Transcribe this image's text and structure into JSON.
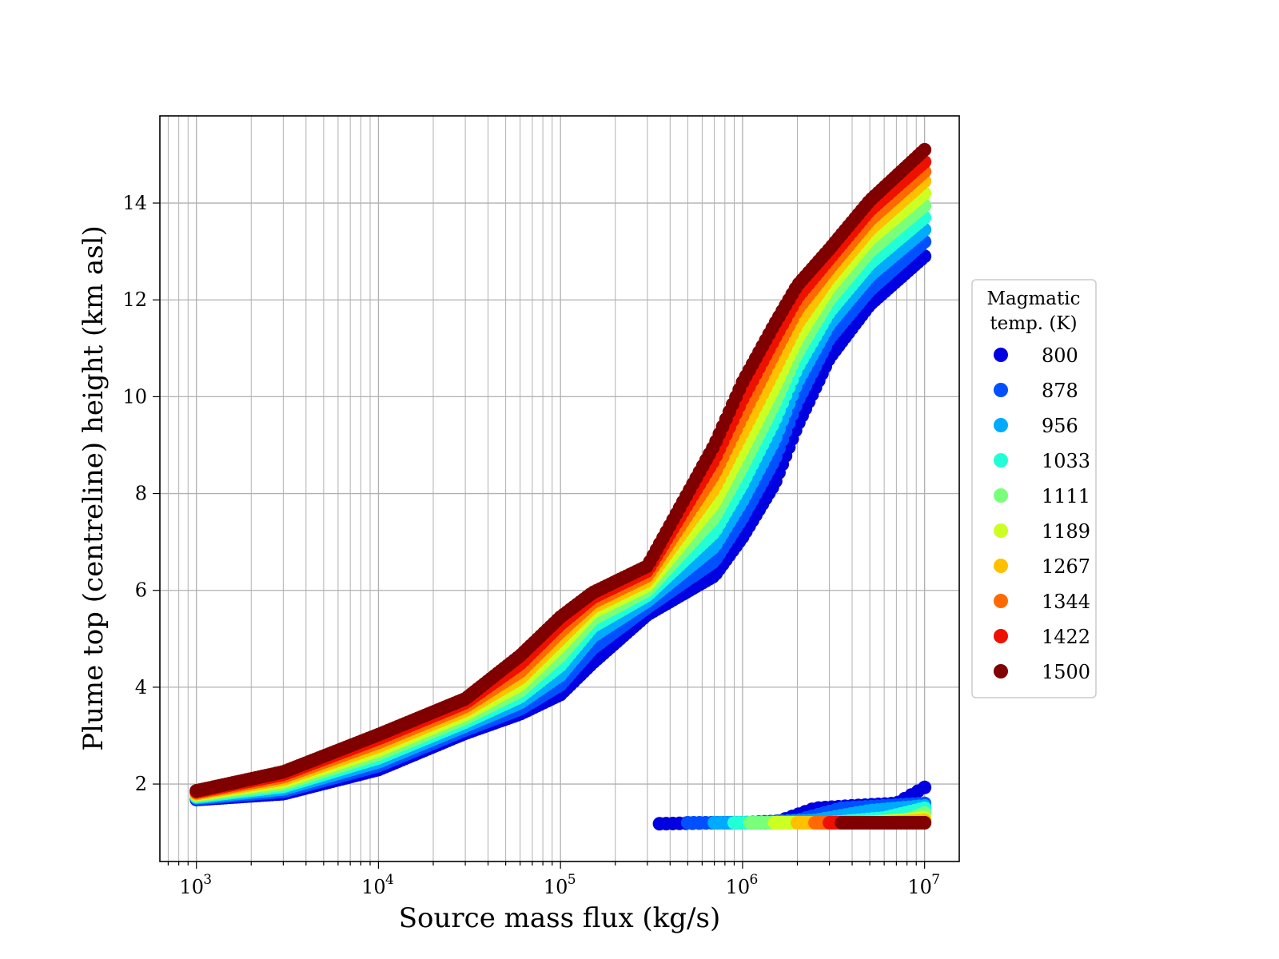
{
  "chart_data": {
    "type": "scatter",
    "xlabel": "Source mass flux (kg/s)",
    "ylabel": "Plume top (centreline) height (km asl)",
    "xscale": "log",
    "xlim": [
      630,
      15500000
    ],
    "ylim": [
      0.4,
      15.8
    ],
    "xticks": [
      1000,
      10000,
      100000,
      1000000,
      10000000
    ],
    "xtick_labels": [
      {
        "base": "10",
        "exp": "3"
      },
      {
        "base": "10",
        "exp": "4"
      },
      {
        "base": "10",
        "exp": "5"
      },
      {
        "base": "10",
        "exp": "6"
      },
      {
        "base": "10",
        "exp": "7"
      }
    ],
    "yticks": [
      2,
      4,
      6,
      8,
      10,
      12,
      14
    ],
    "ytick_labels": [
      "2",
      "4",
      "6",
      "8",
      "10",
      "12",
      "14"
    ],
    "grid": true,
    "legend": {
      "title_lines": [
        "Magmatic",
        "temp. (K)"
      ],
      "placement": "outside-right"
    },
    "series": [
      {
        "name": "800",
        "color": "#0000e0",
        "x": [
          1000,
          3000,
          10000,
          30000,
          60000,
          100000,
          150000,
          300000,
          700000,
          1000000,
          1500000,
          2000000,
          3000000,
          5000000,
          10000000
        ],
        "y": [
          1.68,
          1.8,
          2.3,
          3.05,
          3.45,
          3.85,
          4.5,
          5.5,
          6.3,
          7.1,
          8.2,
          9.4,
          10.8,
          11.9,
          12.9
        ],
        "low_x": [
          350000,
          700000,
          1500000,
          2500000,
          4000000,
          7000000,
          10000000
        ],
        "low_y": [
          1.18,
          1.2,
          1.2,
          1.5,
          1.55,
          1.6,
          1.93
        ]
      },
      {
        "name": "878",
        "color": "#0050ff",
        "x": [
          1000,
          3000,
          10000,
          30000,
          60000,
          100000,
          150000,
          300000,
          700000,
          1000000,
          1500000,
          2000000,
          3000000,
          5000000,
          10000000
        ],
        "y": [
          1.7,
          1.85,
          2.38,
          3.12,
          3.55,
          4.05,
          4.8,
          5.65,
          6.6,
          7.5,
          8.7,
          9.9,
          11.2,
          12.2,
          13.2
        ],
        "low_x": [
          500000,
          1000000,
          2000000,
          3500000,
          6000000,
          10000000
        ],
        "low_y": [
          1.2,
          1.2,
          1.25,
          1.5,
          1.55,
          1.6
        ]
      },
      {
        "name": "956",
        "color": "#00aaff",
        "x": [
          1000,
          3000,
          10000,
          30000,
          60000,
          100000,
          150000,
          300000,
          700000,
          1000000,
          1500000,
          2000000,
          3000000,
          5000000,
          10000000
        ],
        "y": [
          1.72,
          1.9,
          2.46,
          3.2,
          3.68,
          4.25,
          5.05,
          5.78,
          6.9,
          7.85,
          9.1,
          10.3,
          11.5,
          12.5,
          13.45
        ],
        "low_x": [
          700000,
          1200000,
          2500000,
          5000000,
          10000000
        ],
        "low_y": [
          1.2,
          1.2,
          1.25,
          1.45,
          1.55
        ]
      },
      {
        "name": "1033",
        "color": "#22ffd6",
        "x": [
          1000,
          3000,
          10000,
          30000,
          60000,
          100000,
          150000,
          300000,
          700000,
          1000000,
          1500000,
          2000000,
          3000000,
          5000000,
          10000000
        ],
        "y": [
          1.74,
          1.95,
          2.54,
          3.28,
          3.8,
          4.45,
          5.25,
          5.9,
          7.2,
          8.2,
          9.5,
          10.6,
          11.75,
          12.75,
          13.7
        ],
        "low_x": [
          900000,
          1500000,
          3000000,
          6000000,
          10000000
        ],
        "low_y": [
          1.2,
          1.2,
          1.2,
          1.3,
          1.5
        ]
      },
      {
        "name": "1111",
        "color": "#7aff7a",
        "x": [
          1000,
          3000,
          10000,
          30000,
          60000,
          100000,
          150000,
          300000,
          700000,
          1000000,
          1500000,
          2000000,
          3000000,
          5000000,
          10000000
        ],
        "y": [
          1.76,
          2.0,
          2.62,
          3.36,
          3.92,
          4.65,
          5.4,
          6.0,
          7.5,
          8.55,
          9.85,
          10.9,
          12.0,
          13.0,
          13.95
        ],
        "low_x": [
          1100000,
          2000000,
          4000000,
          8000000,
          10000000
        ],
        "low_y": [
          1.2,
          1.2,
          1.2,
          1.25,
          1.4
        ]
      },
      {
        "name": "1189",
        "color": "#ccff22",
        "x": [
          1000,
          3000,
          10000,
          30000,
          60000,
          100000,
          150000,
          300000,
          700000,
          1000000,
          1500000,
          2000000,
          3000000,
          5000000,
          10000000
        ],
        "y": [
          1.78,
          2.05,
          2.7,
          3.44,
          4.05,
          4.85,
          5.55,
          6.1,
          7.8,
          8.9,
          10.2,
          11.2,
          12.25,
          13.25,
          14.2
        ],
        "low_x": [
          1500000,
          2500000,
          5000000,
          10000000
        ],
        "low_y": [
          1.2,
          1.2,
          1.2,
          1.3
        ]
      },
      {
        "name": "1267",
        "color": "#ffc000",
        "x": [
          1000,
          3000,
          10000,
          30000,
          60000,
          100000,
          150000,
          300000,
          700000,
          1000000,
          1500000,
          2000000,
          3000000,
          5000000,
          10000000
        ],
        "y": [
          1.8,
          2.1,
          2.78,
          3.52,
          4.18,
          5.0,
          5.65,
          6.2,
          8.1,
          9.25,
          10.55,
          11.5,
          12.45,
          13.45,
          14.45
        ],
        "low_x": [
          2000000,
          3000000,
          6000000,
          10000000
        ],
        "low_y": [
          1.2,
          1.2,
          1.2,
          1.25
        ]
      },
      {
        "name": "1344",
        "color": "#ff6a00",
        "x": [
          1000,
          3000,
          10000,
          30000,
          60000,
          100000,
          150000,
          300000,
          700000,
          1000000,
          1500000,
          2000000,
          3000000,
          5000000,
          10000000
        ],
        "y": [
          1.82,
          2.15,
          2.86,
          3.6,
          4.32,
          5.15,
          5.75,
          6.3,
          8.4,
          9.6,
          10.9,
          11.8,
          12.65,
          13.65,
          14.65
        ],
        "low_x": [
          2500000,
          4000000,
          7000000,
          10000000
        ],
        "low_y": [
          1.2,
          1.2,
          1.2,
          1.2
        ]
      },
      {
        "name": "1422",
        "color": "#ee1100",
        "x": [
          1000,
          3000,
          10000,
          30000,
          60000,
          100000,
          150000,
          300000,
          700000,
          1000000,
          1500000,
          2000000,
          3000000,
          5000000,
          10000000
        ],
        "y": [
          1.84,
          2.2,
          2.94,
          3.68,
          4.48,
          5.3,
          5.85,
          6.4,
          8.7,
          9.95,
          11.2,
          12.05,
          12.85,
          13.85,
          14.85
        ],
        "low_x": [
          3000000,
          5000000,
          8000000,
          10000000
        ],
        "low_y": [
          1.2,
          1.2,
          1.2,
          1.2
        ]
      },
      {
        "name": "1500",
        "color": "#800000",
        "x": [
          1000,
          3000,
          10000,
          30000,
          60000,
          100000,
          150000,
          300000,
          700000,
          1000000,
          1500000,
          2000000,
          3000000,
          5000000,
          10000000
        ],
        "y": [
          1.86,
          2.25,
          3.02,
          3.76,
          4.65,
          5.45,
          5.95,
          6.5,
          9.0,
          10.3,
          11.5,
          12.3,
          13.05,
          14.05,
          15.1
        ],
        "low_x": [
          3500000,
          5000000,
          8000000,
          10000000
        ],
        "low_y": [
          1.2,
          1.2,
          1.2,
          1.2
        ]
      }
    ]
  }
}
